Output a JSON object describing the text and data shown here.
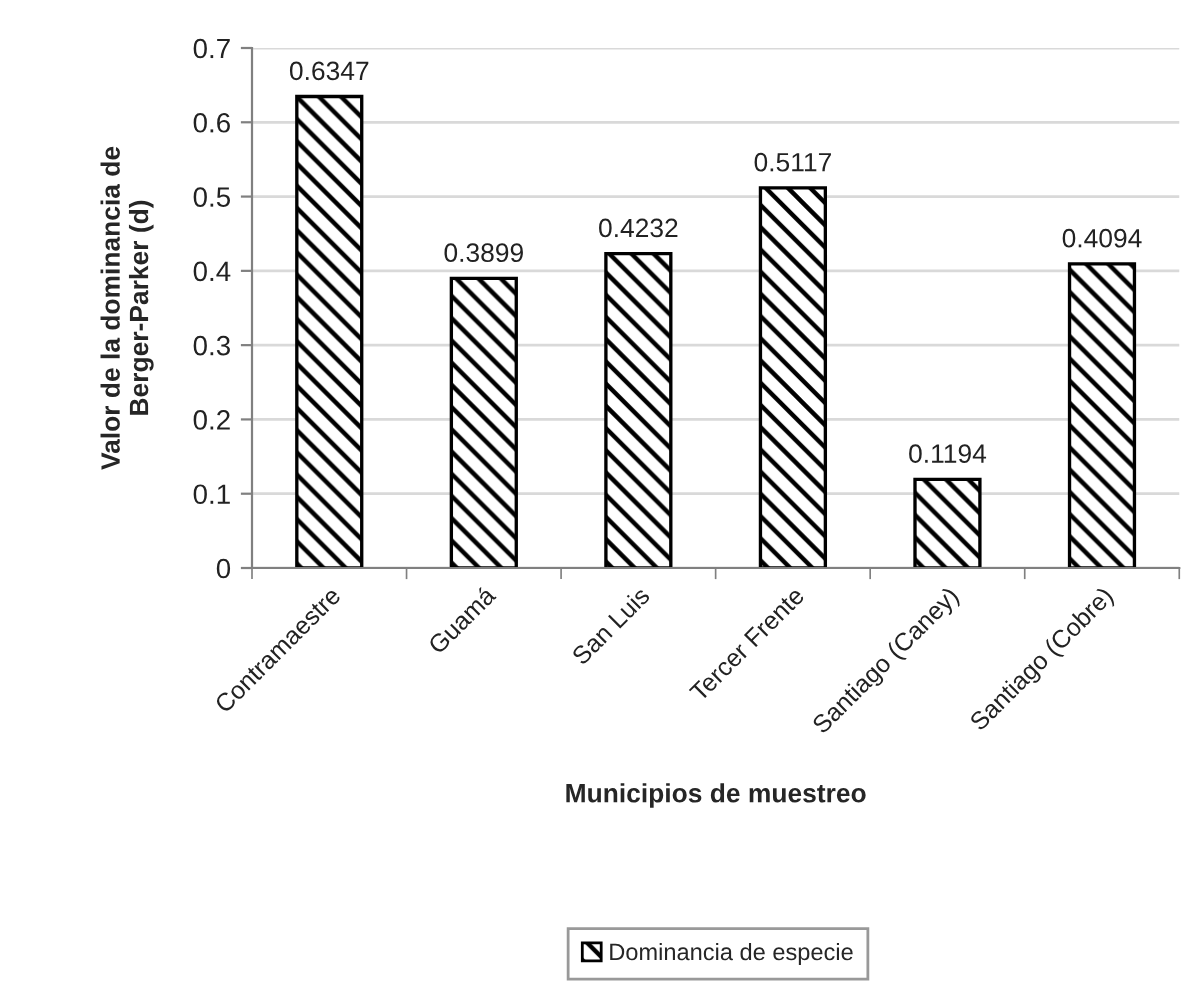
{
  "chart_data": {
    "type": "bar",
    "xlabel": "Municipios de muestreo",
    "ylabel": "Valor de la dominancia de\nBerger-Parker (d)",
    "categories": [
      "Contramaestre",
      "Guamá",
      "San Luis",
      "Tercer Frente",
      "Santiago (Caney)",
      "Santiago (Cobre)"
    ],
    "series": [
      {
        "name": "Dominancia de especie",
        "color": "#000000",
        "values": [
          0.6347,
          0.3899,
          0.4232,
          0.5117,
          0.1194,
          0.4094
        ]
      }
    ],
    "ylim": [
      0,
      0.7
    ],
    "yticks": [
      0,
      0.1,
      0.2,
      0.3,
      0.4,
      0.5,
      0.6,
      0.7
    ],
    "grid": "y",
    "legend": "bottom",
    "data_labels": true
  }
}
